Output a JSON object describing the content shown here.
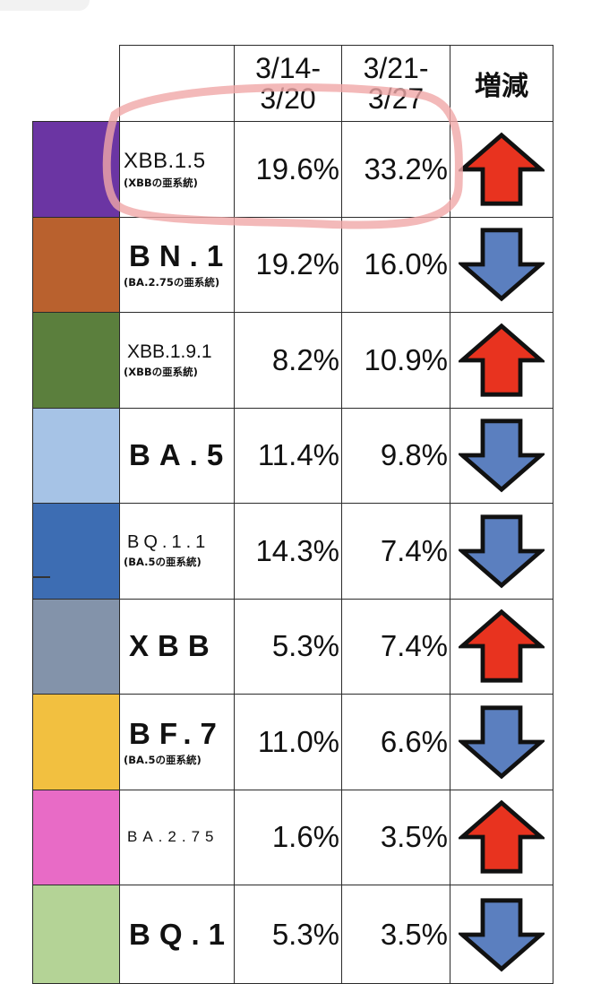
{
  "header": {
    "period_1_line1": "3/14-",
    "period_1_line2": "3/20",
    "period_2_line1": "3/21-",
    "period_2_line2": "3/27",
    "change_label": "増減"
  },
  "colors": {
    "arrow_up": "#e8331f",
    "arrow_down": "#5b7fbf",
    "highlight": "#f0a8a8"
  },
  "rows": [
    {
      "variant": "XBB.1.5",
      "subtext": "(XBBの亜系統)",
      "color": "#6b35a3",
      "p1": "19.6%",
      "p2": "33.2%",
      "trend": "up"
    },
    {
      "variant": "BN.1",
      "subtext": "(BA.2.75の亜系統)",
      "color": "#b9612e",
      "p1": "19.2%",
      "p2": "16.0%",
      "trend": "down"
    },
    {
      "variant": "XBB.1.9.1",
      "subtext": "(XBBの亜系統)",
      "color": "#5b7f3d",
      "p1": "8.2%",
      "p2": "10.9%",
      "trend": "up"
    },
    {
      "variant": "BA.5",
      "subtext": "",
      "color": "#a6c3e6",
      "p1": "11.4%",
      "p2": "9.8%",
      "trend": "down"
    },
    {
      "variant": "BQ.1.1",
      "subtext": "(BA.5の亜系統)",
      "color": "#3d6db3",
      "p1": "14.3%",
      "p2": "7.4%",
      "trend": "down"
    },
    {
      "variant": "XBB",
      "subtext": "",
      "color": "#8393aa",
      "p1": "5.3%",
      "p2": "7.4%",
      "trend": "up"
    },
    {
      "variant": "BF.7",
      "subtext": "(BA.5の亜系統)",
      "color": "#f2c040",
      "p1": "11.0%",
      "p2": "6.6%",
      "trend": "down"
    },
    {
      "variant": "BA.2.75",
      "subtext": "",
      "color": "#e86bc6",
      "p1": "1.6%",
      "p2": "3.5%",
      "trend": "up"
    },
    {
      "variant": "BQ.1",
      "subtext": "",
      "color": "#b4d396",
      "p1": "5.3%",
      "p2": "3.5%",
      "trend": "down"
    }
  ]
}
